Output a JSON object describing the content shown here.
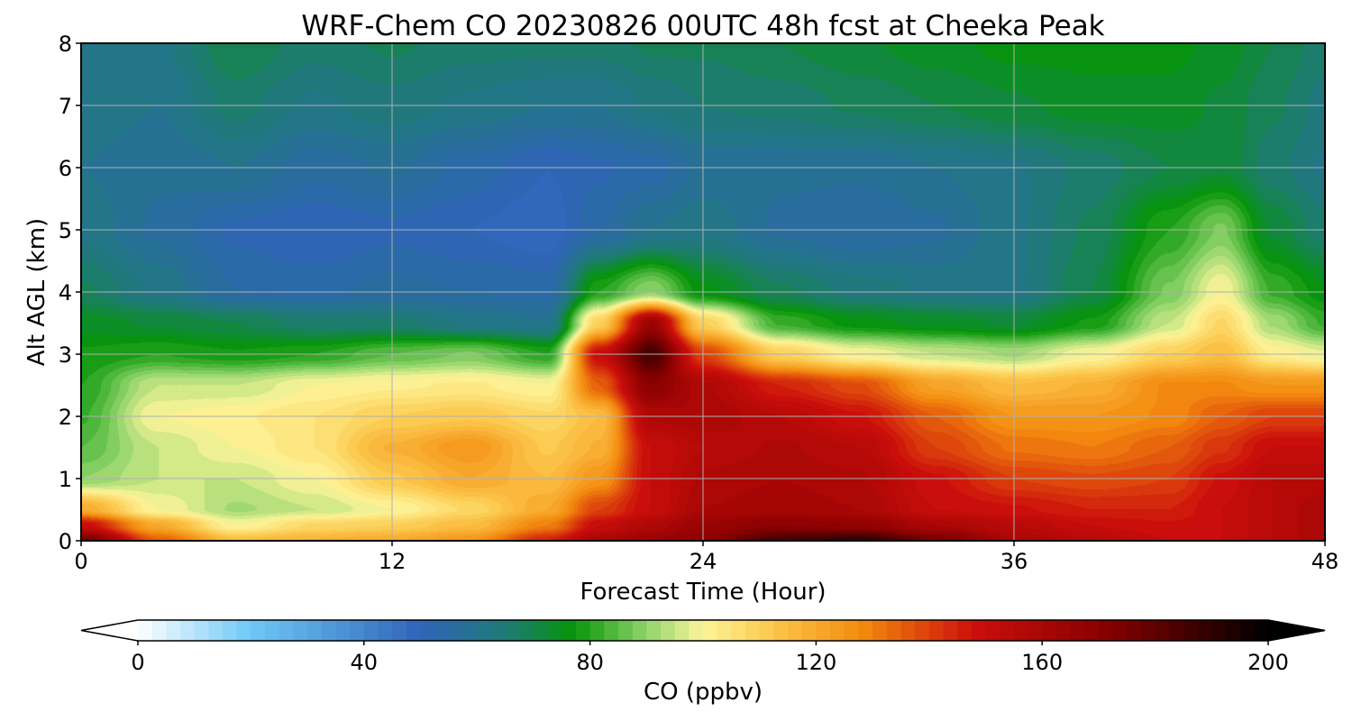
{
  "chart_data": {
    "type": "heatmap",
    "title": "WRF-Chem CO  20230826 00UTC 48h fcst at Cheeka Peak",
    "xlabel": "Forecast Time (Hour)",
    "ylabel": "Alt AGL (km)",
    "xlim": [
      0,
      48
    ],
    "ylim": [
      0,
      8
    ],
    "xticks": [
      0,
      12,
      24,
      36,
      48
    ],
    "yticks": [
      0,
      1,
      2,
      3,
      4,
      5,
      6,
      7,
      8
    ],
    "grid": true,
    "x": [
      0,
      3,
      6,
      9,
      12,
      15,
      18,
      20,
      22,
      24,
      27,
      30,
      33,
      36,
      39,
      42,
      44,
      46,
      48
    ],
    "y": [
      0,
      0.25,
      0.5,
      1,
      1.5,
      2,
      2.5,
      3,
      3.5,
      4,
      5,
      6,
      7,
      8
    ],
    "z": [
      [
        175,
        135,
        115,
        118,
        120,
        125,
        145,
        160,
        165,
        170,
        185,
        190,
        175,
        160,
        155,
        150,
        150,
        155,
        160
      ],
      [
        150,
        120,
        100,
        108,
        110,
        115,
        130,
        150,
        158,
        165,
        170,
        168,
        160,
        155,
        150,
        148,
        150,
        155,
        160
      ],
      [
        120,
        100,
        92,
        95,
        100,
        108,
        120,
        140,
        150,
        160,
        162,
        160,
        150,
        148,
        145,
        145,
        150,
        155,
        160
      ],
      [
        90,
        95,
        95,
        100,
        112,
        120,
        115,
        125,
        150,
        158,
        160,
        158,
        148,
        140,
        138,
        140,
        148,
        155,
        155
      ],
      [
        85,
        95,
        100,
        105,
        118,
        125,
        112,
        118,
        150,
        155,
        158,
        155,
        140,
        132,
        130,
        135,
        142,
        150,
        150
      ],
      [
        82,
        100,
        102,
        105,
        110,
        112,
        108,
        115,
        158,
        160,
        155,
        148,
        135,
        125,
        125,
        128,
        135,
        140,
        140
      ],
      [
        80,
        95,
        95,
        100,
        102,
        103,
        100,
        135,
        170,
        158,
        145,
        138,
        122,
        115,
        118,
        128,
        128,
        125,
        125
      ],
      [
        78,
        80,
        78,
        80,
        85,
        88,
        80,
        150,
        185,
        140,
        110,
        100,
        95,
        92,
        100,
        110,
        115,
        102,
        98
      ],
      [
        74,
        72,
        70,
        66,
        66,
        62,
        60,
        110,
        165,
        110,
        82,
        76,
        74,
        72,
        78,
        95,
        108,
        92,
        82
      ],
      [
        68,
        62,
        55,
        54,
        56,
        55,
        54,
        80,
        90,
        76,
        68,
        64,
        62,
        62,
        70,
        88,
        100,
        82,
        76
      ],
      [
        62,
        57,
        52,
        50,
        52,
        50,
        48,
        55,
        60,
        62,
        57,
        55,
        57,
        62,
        68,
        80,
        88,
        72,
        66
      ],
      [
        60,
        58,
        60,
        56,
        58,
        54,
        50,
        52,
        54,
        58,
        58,
        58,
        60,
        62,
        66,
        70,
        72,
        66,
        62
      ],
      [
        62,
        60,
        66,
        62,
        64,
        62,
        60,
        60,
        63,
        65,
        66,
        68,
        70,
        72,
        74,
        74,
        72,
        68,
        64
      ],
      [
        62,
        62,
        70,
        66,
        68,
        66,
        66,
        66,
        68,
        68,
        70,
        72,
        74,
        76,
        76,
        76,
        74,
        70,
        66
      ]
    ],
    "z_units": "ppbv",
    "colorbar": {
      "label": "CO  (ppbv)",
      "min": 0,
      "max": 200,
      "ticks": [
        0,
        40,
        80,
        120,
        160,
        200
      ],
      "extend": "both",
      "stops": [
        {
          "v": 0,
          "c": "#ffffff"
        },
        {
          "v": 20,
          "c": "#6ec8f6"
        },
        {
          "v": 50,
          "c": "#2f64b8"
        },
        {
          "v": 65,
          "c": "#1f7a78"
        },
        {
          "v": 77,
          "c": "#059508"
        },
        {
          "v": 90,
          "c": "#8fd46a"
        },
        {
          "v": 100,
          "c": "#fdf59a"
        },
        {
          "v": 112,
          "c": "#fcc84d"
        },
        {
          "v": 128,
          "c": "#f38b0e"
        },
        {
          "v": 148,
          "c": "#cc0e0b"
        },
        {
          "v": 172,
          "c": "#850000"
        },
        {
          "v": 200,
          "c": "#000000"
        }
      ]
    }
  }
}
